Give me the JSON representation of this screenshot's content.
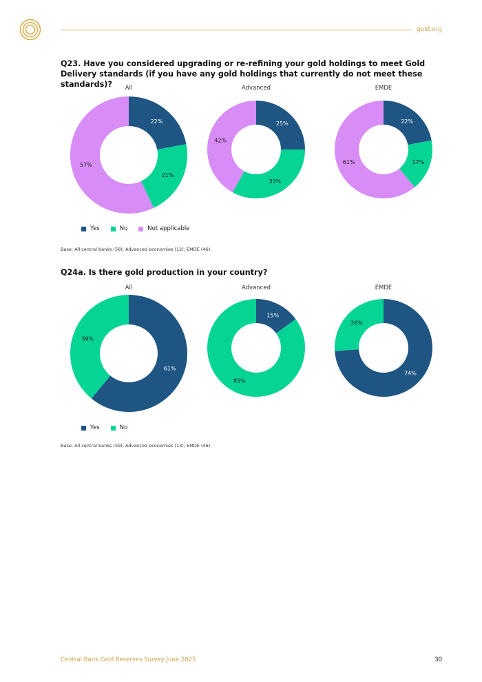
{
  "header": {
    "site": "gold.org"
  },
  "charts": [
    {
      "question": "Q23. Have you considered upgrading or re-refining your gold holdings to meet Gold Delivery standards (if you have any gold holdings that currently do not meet these standards)?",
      "legend": [
        {
          "name": "Yes",
          "color": "#1f5582"
        },
        {
          "name": "No",
          "color": "#05d494"
        },
        {
          "name": "Not applicable",
          "color": "#d88cf5"
        }
      ],
      "base": "Base: All central banks (58); Advanced economies (12); EMDE (46)."
    },
    {
      "question": "Q24a. Is there gold production in your country?",
      "legend": [
        {
          "name": "Yes",
          "color": "#1f5582"
        },
        {
          "name": "No",
          "color": "#05d494"
        }
      ],
      "base": "Base: All central banks (59); Advanced economies (13); EMDE (46)."
    }
  ],
  "chart_data": [
    {
      "type": "pie",
      "donut": true,
      "series_names": [
        "Yes",
        "No",
        "Not applicable"
      ],
      "groups": [
        {
          "label": "All",
          "values": [
            22,
            21,
            57
          ]
        },
        {
          "label": "Advanced",
          "values": [
            25,
            33,
            42
          ]
        },
        {
          "label": "EMDE",
          "values": [
            22,
            17,
            61
          ]
        }
      ],
      "value_suffix": "%"
    },
    {
      "type": "pie",
      "donut": true,
      "series_names": [
        "Yes",
        "No"
      ],
      "groups": [
        {
          "label": "All",
          "values": [
            61,
            39
          ]
        },
        {
          "label": "Advanced",
          "values": [
            15,
            85
          ]
        },
        {
          "label": "EMDE",
          "values": [
            74,
            26
          ]
        }
      ],
      "value_suffix": "%"
    }
  ],
  "footer": {
    "title": "Central Bank Gold Reserves Survey June 2025",
    "page": "30"
  }
}
